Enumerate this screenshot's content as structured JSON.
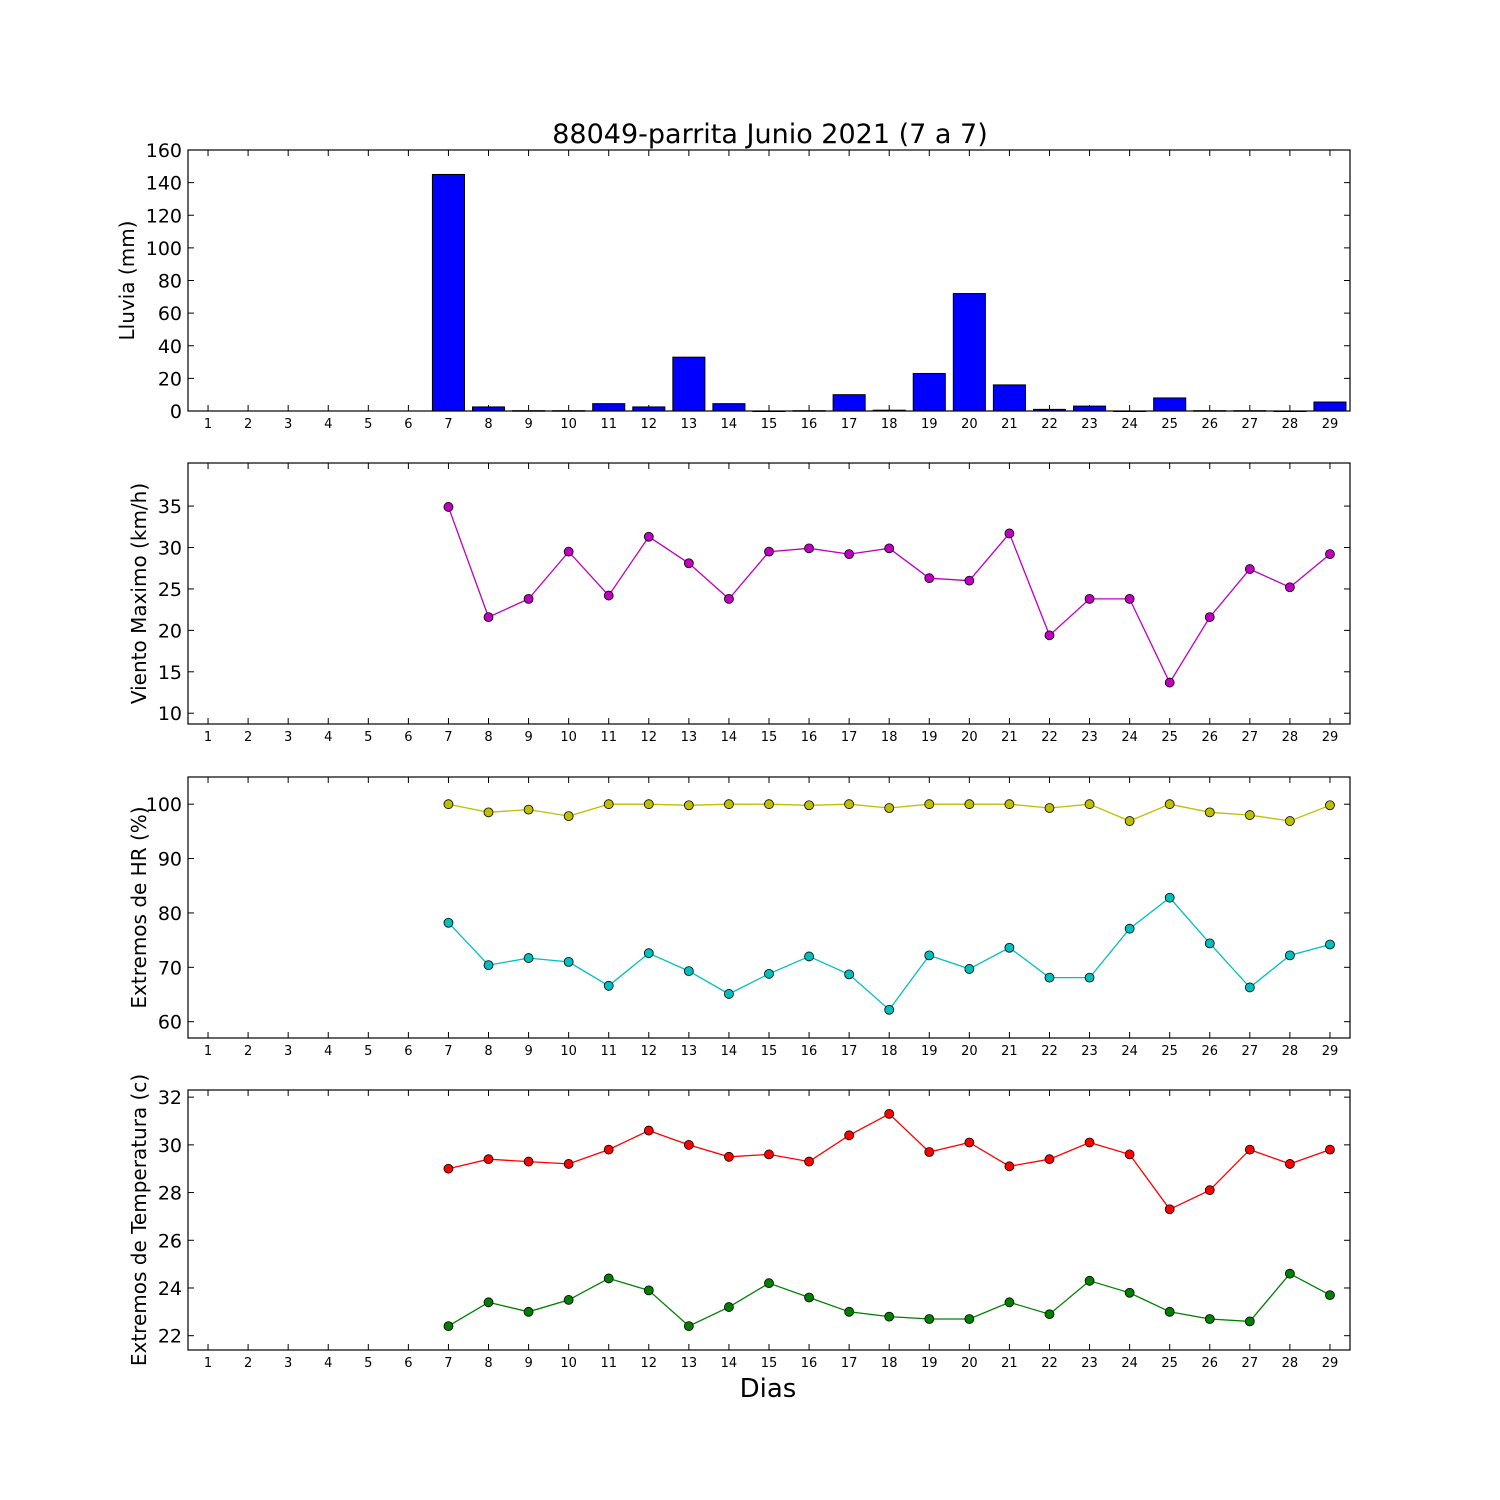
{
  "title": "88049-parrita Junio 2021  (7 a 7)",
  "xlabel": "Dias",
  "chart_data": [
    {
      "id": "lluvia",
      "type": "bar",
      "ylabel": "Lluvia (mm)",
      "ylim": [
        0,
        160
      ],
      "yticks": [
        0,
        20,
        40,
        60,
        80,
        100,
        120,
        140,
        160
      ],
      "x": [
        1,
        2,
        3,
        4,
        5,
        6,
        7,
        8,
        9,
        10,
        11,
        12,
        13,
        14,
        15,
        16,
        17,
        18,
        19,
        20,
        21,
        22,
        23,
        24,
        25,
        26,
        27,
        28,
        29
      ],
      "series": [
        {
          "color": "#0000ff",
          "values": [
            null,
            null,
            null,
            null,
            null,
            null,
            145,
            2.5,
            0.2,
            0.2,
            4.5,
            2.5,
            33,
            4.5,
            0,
            0.2,
            10,
            0.5,
            23,
            72,
            16,
            1,
            3,
            0,
            8,
            0.2,
            0.2,
            0,
            5.5
          ]
        }
      ]
    },
    {
      "id": "viento",
      "type": "line",
      "ylabel": "Viento Maximo (km/h)",
      "ylim": [
        8.7,
        40.2
      ],
      "yticks": [
        10,
        15,
        20,
        25,
        30,
        35
      ],
      "x": [
        1,
        2,
        3,
        4,
        5,
        6,
        7,
        8,
        9,
        10,
        11,
        12,
        13,
        14,
        15,
        16,
        17,
        18,
        19,
        20,
        21,
        22,
        23,
        24,
        25,
        26,
        27,
        28,
        29
      ],
      "series": [
        {
          "color": "#bf00bf",
          "values": [
            null,
            null,
            null,
            null,
            null,
            null,
            34.9,
            21.6,
            23.8,
            29.5,
            24.2,
            31.3,
            28.1,
            23.8,
            29.5,
            29.9,
            29.2,
            29.9,
            26.3,
            26.0,
            31.7,
            19.4,
            23.8,
            23.8,
            13.7,
            21.6,
            27.4,
            25.2,
            29.2
          ]
        }
      ]
    },
    {
      "id": "hr",
      "type": "line",
      "ylabel": "Extremos de HR (%)",
      "ylim": [
        57,
        105
      ],
      "yticks": [
        60,
        70,
        80,
        90,
        100
      ],
      "x": [
        1,
        2,
        3,
        4,
        5,
        6,
        7,
        8,
        9,
        10,
        11,
        12,
        13,
        14,
        15,
        16,
        17,
        18,
        19,
        20,
        21,
        22,
        23,
        24,
        25,
        26,
        27,
        28,
        29
      ],
      "series": [
        {
          "color": "#bfbf00",
          "values": [
            null,
            null,
            null,
            null,
            null,
            null,
            100,
            98.5,
            99,
            97.8,
            100,
            100,
            99.8,
            100,
            100,
            99.8,
            100,
            99.3,
            100,
            100,
            100,
            99.3,
            100,
            96.9,
            100,
            98.5,
            98,
            96.9,
            99.8
          ]
        },
        {
          "color": "#00bfbf",
          "values": [
            null,
            null,
            null,
            null,
            null,
            null,
            78.2,
            70.4,
            71.7,
            71,
            66.6,
            72.6,
            69.3,
            65.1,
            68.8,
            72,
            68.7,
            62.2,
            72.2,
            69.7,
            73.6,
            68.1,
            68.1,
            77.1,
            82.8,
            74.4,
            66.3,
            72.2,
            74.2
          ]
        }
      ]
    },
    {
      "id": "temperatura",
      "type": "line",
      "ylabel": "Extremos de Temperatura (c)",
      "ylim": [
        21.4,
        32.3
      ],
      "yticks": [
        22,
        24,
        26,
        28,
        30,
        32
      ],
      "x": [
        1,
        2,
        3,
        4,
        5,
        6,
        7,
        8,
        9,
        10,
        11,
        12,
        13,
        14,
        15,
        16,
        17,
        18,
        19,
        20,
        21,
        22,
        23,
        24,
        25,
        26,
        27,
        28,
        29
      ],
      "series": [
        {
          "color": "#ff0000",
          "values": [
            null,
            null,
            null,
            null,
            null,
            null,
            29.0,
            29.4,
            29.3,
            29.2,
            29.8,
            30.6,
            30.0,
            29.5,
            29.6,
            29.3,
            30.4,
            31.3,
            29.7,
            30.1,
            29.1,
            29.4,
            30.1,
            29.6,
            27.3,
            28.1,
            29.8,
            29.2,
            29.8
          ]
        },
        {
          "color": "#007f00",
          "values": [
            null,
            null,
            null,
            null,
            null,
            null,
            22.4,
            23.4,
            23.0,
            23.5,
            24.4,
            23.9,
            22.4,
            23.2,
            24.2,
            23.6,
            23.0,
            22.8,
            22.7,
            22.7,
            23.4,
            22.9,
            24.3,
            23.8,
            23.0,
            22.7,
            22.6,
            24.6,
            23.7
          ]
        }
      ]
    }
  ]
}
